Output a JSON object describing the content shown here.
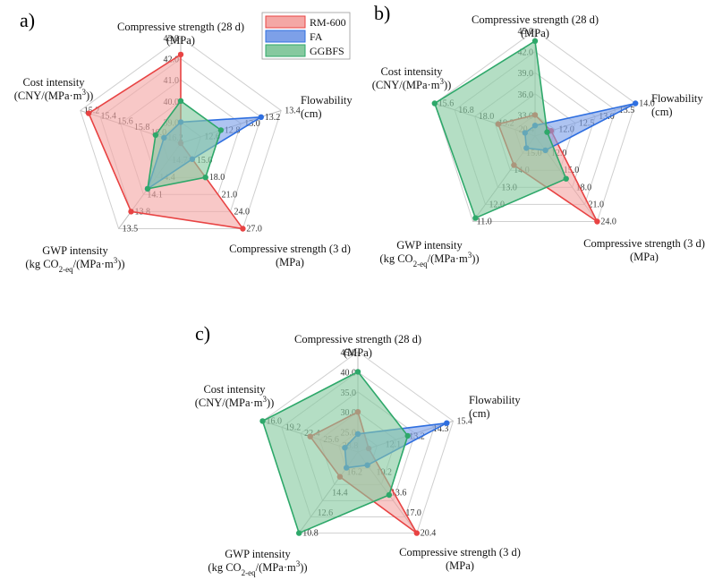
{
  "legend": {
    "items": [
      {
        "label": "RM-600",
        "color": "#e84343",
        "fill": "#f4a7a5"
      },
      {
        "label": "FA",
        "color": "#2f6fe0",
        "fill": "#7da0e8"
      },
      {
        "label": "GGBFS",
        "color": "#2ea86a",
        "fill": "#86c99f"
      }
    ]
  },
  "chart_data": [
    {
      "type": "radar",
      "panel_label": "a)",
      "axes": [
        {
          "label_lines": [
            "Compressive strength (28 d)",
            "(MPa)"
          ],
          "ticks": [
            "39.0",
            "40.0",
            "41.0",
            "42.0",
            "43.0"
          ],
          "range": [
            38,
            43
          ]
        },
        {
          "label_lines": [
            "Flowability",
            "(cm)"
          ],
          "ticks": [
            "12.6",
            "12.8",
            "13.0",
            "13.2",
            "13.4"
          ],
          "range": [
            12.4,
            13.4
          ]
        },
        {
          "label_lines": [
            "Compressive strength (3 d)",
            "(MPa)"
          ],
          "ticks": [
            "15.0",
            "18.0",
            "21.0",
            "24.0",
            "27.0"
          ],
          "range": [
            12,
            27
          ]
        },
        {
          "label_lines": [
            "GWP intensity",
            "(kg CO2-eq/(MPa·m3))"
          ],
          "ticks": [
            "14.7",
            "14.4",
            "14.1",
            "13.8",
            "13.5"
          ],
          "range": [
            15.0,
            13.5
          ]
        },
        {
          "label_lines": [
            "Cost intensity",
            "(CNY/(MPa·m3))"
          ],
          "ticks": [
            "16.2",
            "16.0",
            "15.8",
            "15.6",
            "15.4",
            "15.2"
          ],
          "range": [
            16.4,
            15.2
          ]
        }
      ],
      "series": [
        {
          "name": "RM-600",
          "values": [
            42.2,
            12.4,
            27.0,
            13.8,
            15.3
          ]
        },
        {
          "name": "FA",
          "values": [
            39.0,
            13.2,
            14.8,
            14.2,
            16.2
          ]
        },
        {
          "name": "GGBFS",
          "values": [
            40.0,
            12.8,
            18.0,
            14.2,
            16.1
          ]
        }
      ]
    },
    {
      "type": "radar",
      "panel_label": "b)",
      "axes": [
        {
          "label_lines": [
            "Compressive strength (28 d)",
            "(MPa)"
          ],
          "ticks": [
            "33.0",
            "36.0",
            "39.0",
            "42.0",
            "45.0"
          ],
          "range": [
            30,
            45
          ]
        },
        {
          "label_lines": [
            "Flowability",
            "(cm)"
          ],
          "ticks": [
            "12.0",
            "12.5",
            "13.0",
            "13.5",
            "14.0"
          ],
          "range": [
            11.5,
            14.0
          ]
        },
        {
          "label_lines": [
            "Compressive strength (3 d)",
            "(MPa)"
          ],
          "ticks": [
            "12.0",
            "15.0",
            "18.0",
            "21.0",
            "24.0"
          ],
          "range": [
            9,
            24
          ]
        },
        {
          "label_lines": [
            "GWP intensity",
            "(kg CO2-eq/(MPa·m3))"
          ],
          "ticks": [
            "15.0",
            "14.0",
            "13.0",
            "12.0",
            "11.0"
          ],
          "range": [
            16.0,
            11.0
          ]
        },
        {
          "label_lines": [
            "Cost intensity",
            "(CNY/(MPa·m3))"
          ],
          "ticks": [
            "20.4",
            "19.2",
            "18.0",
            "16.8",
            "15.6"
          ],
          "range": [
            21.6,
            15.6
          ]
        }
      ],
      "series": [
        {
          "name": "RM-600",
          "values": [
            33.0,
            11.9,
            24.0,
            14.3,
            19.4
          ]
        },
        {
          "name": "FA",
          "values": [
            31.5,
            14.0,
            11.5,
            15.3,
            21.0
          ]
        },
        {
          "name": "GGBFS",
          "values": [
            43.5,
            11.8,
            16.5,
            11.2,
            15.6
          ]
        }
      ]
    },
    {
      "type": "radar",
      "panel_label": "c)",
      "axes": [
        {
          "label_lines": [
            "Compressive strength (28 d)",
            "(MPa)"
          ],
          "ticks": [
            "25.0",
            "30.0",
            "35.0",
            "40.0",
            "45.0"
          ],
          "range": [
            20,
            45
          ]
        },
        {
          "label_lines": [
            "Flowability",
            "(cm)"
          ],
          "ticks": [
            "12.1",
            "13.2",
            "14.3",
            "15.4"
          ],
          "range": [
            11.0,
            15.4
          ]
        },
        {
          "label_lines": [
            "Compressive strength (3 d)",
            "(MPa)"
          ],
          "ticks": [
            "10.2",
            "13.6",
            "17.0",
            "20.4"
          ],
          "range": [
            6.8,
            20.4
          ]
        },
        {
          "label_lines": [
            "GWP intensity",
            "(kg CO2-eq/(MPa·m3))"
          ],
          "ticks": [
            "16.2",
            "14.4",
            "12.6",
            "10.8"
          ],
          "range": [
            18.0,
            10.8
          ]
        },
        {
          "label_lines": [
            "Cost intensity",
            "(CNY/(MPa·m3))"
          ],
          "ticks": [
            "28.8",
            "25.6",
            "22.4",
            "19.2",
            "16.0"
          ],
          "range": [
            32.0,
            16.0
          ]
        }
      ],
      "series": [
        {
          "name": "RM-600",
          "values": [
            30.0,
            11.5,
            20.4,
            15.8,
            24.0
          ]
        },
        {
          "name": "FA",
          "values": [
            24.5,
            15.1,
            9.0,
            16.6,
            29.8
          ]
        },
        {
          "name": "GGBFS",
          "values": [
            40.0,
            13.3,
            14.0,
            10.8,
            16.0
          ]
        }
      ]
    }
  ]
}
